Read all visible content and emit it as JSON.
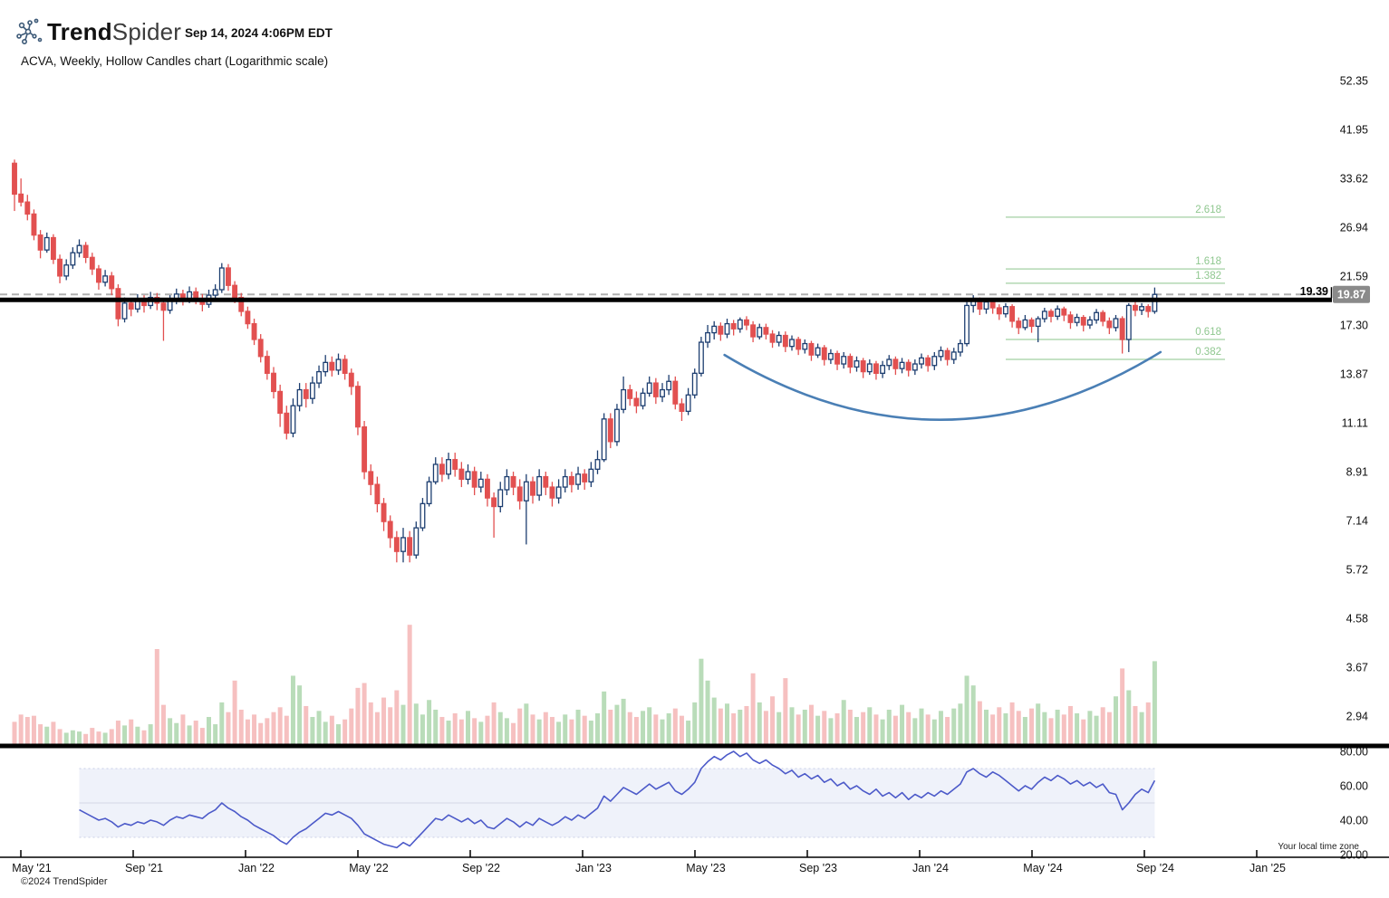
{
  "header": {
    "brand_bold": "Trend",
    "brand_light": "Spider",
    "timestamp": "Sep 14, 2024 4:06PM EDT",
    "subtitle": "ACVA, Weekly, Hollow Candles chart (Logarithmic scale)"
  },
  "footer": {
    "copyright": "©2024 TrendSpider",
    "timezone_note": "Your local time zone"
  },
  "chart_data": {
    "type": "candlestick",
    "symbol": "ACVA",
    "timeframe": "Weekly",
    "style": "Hollow Candles",
    "scale": "Logarithmic",
    "x_axis": {
      "labels": [
        "May '21",
        "Sep '21",
        "Jan '22",
        "May '22",
        "Sep '22",
        "Jan '23",
        "May '23",
        "Sep '23",
        "Jan '24",
        "May '24",
        "Sep '24",
        "Jan '25"
      ]
    },
    "y_axis": {
      "price_labels": [
        "52.35",
        "41.95",
        "33.62",
        "26.94",
        "21.59",
        "17.30",
        "13.87",
        "11.11",
        "8.91",
        "7.14",
        "5.72",
        "4.58",
        "3.67",
        "2.94"
      ],
      "scale": "log"
    },
    "indicator_axis": {
      "labels": [
        "80.00",
        "60.00",
        "40.00",
        "20.00"
      ],
      "band_high": 70,
      "band_low": 30,
      "midline": 50
    },
    "trendline": {
      "label": "19.39",
      "price": 19.39
    },
    "last_price": {
      "label": "19.87",
      "price": 19.87
    },
    "fib_levels": [
      {
        "label": "2.618",
        "price": 28.2
      },
      {
        "label": "1.618",
        "price": 22.3
      },
      {
        "label": "1.382",
        "price": 20.9
      },
      {
        "label": "0.618",
        "price": 16.2
      },
      {
        "label": "0.382",
        "price": 14.8
      }
    ],
    "arc_annotation": {
      "start_week": 109.6,
      "start_price": 15.1,
      "ctrl_week": 143.2,
      "ctrl_price": 8.34,
      "end_week": 176.9,
      "end_price": 15.3
    },
    "ohlc": [
      [
        36.0,
        36.6,
        29.0,
        31.3
      ],
      [
        31.3,
        33.6,
        29.6,
        30.2
      ],
      [
        30.2,
        31.2,
        27.8,
        28.6
      ],
      [
        28.6,
        29.2,
        25.4,
        26.0
      ],
      [
        26.0,
        26.6,
        23.4,
        24.3
      ],
      [
        24.3,
        26.3,
        24.0,
        25.7
      ],
      [
        25.7,
        26.1,
        22.8,
        23.3
      ],
      [
        23.3,
        23.8,
        20.9,
        21.6
      ],
      [
        21.6,
        23.3,
        21.2,
        22.7
      ],
      [
        22.7,
        24.6,
        22.3,
        24.0
      ],
      [
        24.0,
        25.5,
        23.5,
        24.8
      ],
      [
        24.8,
        25.2,
        22.9,
        23.5
      ],
      [
        23.5,
        24.0,
        21.7,
        22.3
      ],
      [
        22.3,
        22.7,
        20.3,
        21.0
      ],
      [
        21.0,
        22.2,
        20.6,
        21.6
      ],
      [
        21.6,
        22.0,
        19.8,
        20.4
      ],
      [
        20.4,
        20.8,
        17.2,
        17.8
      ],
      [
        17.8,
        19.6,
        17.5,
        19.1
      ],
      [
        19.1,
        19.5,
        18.0,
        18.6
      ],
      [
        18.6,
        19.9,
        18.3,
        19.4
      ],
      [
        19.4,
        19.8,
        18.3,
        18.9
      ],
      [
        18.9,
        20.1,
        18.6,
        19.6
      ],
      [
        19.6,
        20.0,
        18.5,
        19.1
      ],
      [
        19.1,
        19.5,
        16.1,
        18.5
      ],
      [
        18.5,
        19.8,
        18.2,
        19.3
      ],
      [
        19.3,
        20.4,
        19.0,
        19.9
      ],
      [
        19.9,
        20.3,
        18.9,
        19.4
      ],
      [
        19.4,
        20.6,
        19.1,
        20.1
      ],
      [
        20.1,
        20.5,
        19.0,
        19.5
      ],
      [
        19.5,
        19.9,
        18.4,
        19.0
      ],
      [
        19.0,
        20.3,
        18.7,
        19.8
      ],
      [
        19.8,
        20.8,
        19.4,
        20.3
      ],
      [
        20.3,
        22.9,
        20.0,
        22.4
      ],
      [
        22.4,
        22.8,
        20.2,
        20.7
      ],
      [
        20.7,
        21.1,
        19.1,
        19.6
      ],
      [
        19.6,
        20.0,
        18.0,
        18.4
      ],
      [
        18.4,
        18.8,
        17.0,
        17.4
      ],
      [
        17.4,
        17.8,
        15.8,
        16.2
      ],
      [
        16.2,
        16.6,
        14.6,
        15.0
      ],
      [
        15.0,
        15.4,
        13.5,
        13.9
      ],
      [
        13.9,
        14.3,
        12.4,
        12.8
      ],
      [
        12.8,
        13.2,
        10.9,
        11.6
      ],
      [
        11.6,
        12.0,
        10.3,
        10.6
      ],
      [
        10.6,
        12.4,
        10.4,
        12.0
      ],
      [
        12.0,
        13.3,
        11.7,
        12.9
      ],
      [
        12.9,
        13.3,
        11.9,
        12.4
      ],
      [
        12.4,
        13.7,
        12.1,
        13.3
      ],
      [
        13.3,
        14.4,
        13.0,
        14.0
      ],
      [
        14.0,
        15.1,
        13.7,
        14.6
      ],
      [
        14.6,
        15.0,
        13.7,
        14.1
      ],
      [
        14.1,
        15.2,
        13.8,
        14.8
      ],
      [
        14.8,
        15.1,
        13.5,
        13.9
      ],
      [
        13.9,
        14.2,
        12.6,
        13.1
      ],
      [
        13.1,
        13.4,
        10.5,
        10.9
      ],
      [
        10.9,
        11.2,
        8.6,
        8.9
      ],
      [
        8.9,
        9.2,
        8.0,
        8.4
      ],
      [
        8.4,
        8.7,
        7.4,
        7.7
      ],
      [
        7.7,
        7.9,
        6.8,
        7.1
      ],
      [
        7.1,
        7.3,
        6.3,
        6.6
      ],
      [
        6.6,
        6.8,
        5.9,
        6.2
      ],
      [
        6.2,
        6.9,
        5.9,
        6.6
      ],
      [
        6.6,
        6.8,
        5.9,
        6.1
      ],
      [
        6.1,
        7.1,
        6.0,
        6.9
      ],
      [
        6.9,
        7.9,
        6.8,
        7.7
      ],
      [
        7.7,
        8.7,
        7.6,
        8.5
      ],
      [
        8.5,
        9.5,
        8.4,
        9.2
      ],
      [
        9.2,
        9.5,
        8.5,
        8.8
      ],
      [
        8.8,
        9.7,
        8.6,
        9.4
      ],
      [
        9.4,
        9.7,
        8.7,
        9.0
      ],
      [
        9.0,
        9.3,
        8.3,
        8.6
      ],
      [
        8.6,
        9.2,
        8.4,
        8.9
      ],
      [
        8.9,
        9.1,
        8.0,
        8.3
      ],
      [
        8.3,
        8.9,
        8.1,
        8.6
      ],
      [
        8.6,
        8.8,
        7.6,
        7.9
      ],
      [
        7.9,
        8.1,
        6.6,
        7.6
      ],
      [
        7.6,
        8.5,
        7.4,
        8.2
      ],
      [
        8.2,
        9.0,
        8.0,
        8.7
      ],
      [
        8.7,
        8.9,
        8.0,
        8.3
      ],
      [
        8.3,
        8.6,
        7.5,
        7.8
      ],
      [
        7.8,
        8.8,
        6.4,
        8.5
      ],
      [
        8.5,
        8.7,
        7.7,
        8.0
      ],
      [
        8.0,
        9.0,
        7.8,
        8.7
      ],
      [
        8.7,
        8.9,
        8.0,
        8.3
      ],
      [
        8.3,
        8.5,
        7.6,
        7.9
      ],
      [
        7.9,
        8.6,
        7.7,
        8.3
      ],
      [
        8.3,
        9.0,
        8.1,
        8.7
      ],
      [
        8.7,
        8.9,
        8.1,
        8.4
      ],
      [
        8.4,
        9.1,
        8.2,
        8.8
      ],
      [
        8.8,
        9.0,
        8.2,
        8.5
      ],
      [
        8.5,
        9.3,
        8.3,
        9.0
      ],
      [
        9.0,
        9.8,
        8.8,
        9.4
      ],
      [
        9.4,
        11.6,
        9.3,
        11.3
      ],
      [
        11.3,
        11.6,
        9.9,
        10.2
      ],
      [
        10.2,
        12.1,
        10.0,
        11.8
      ],
      [
        11.8,
        13.7,
        11.6,
        12.9
      ],
      [
        12.9,
        13.2,
        12.0,
        12.4
      ],
      [
        12.4,
        12.8,
        11.6,
        12.0
      ],
      [
        12.0,
        13.0,
        11.8,
        12.7
      ],
      [
        12.7,
        13.7,
        12.5,
        13.3
      ],
      [
        13.3,
        13.6,
        12.1,
        12.5
      ],
      [
        12.5,
        13.3,
        12.2,
        12.9
      ],
      [
        12.9,
        13.8,
        12.6,
        13.4
      ],
      [
        13.4,
        13.7,
        11.8,
        12.1
      ],
      [
        12.1,
        12.4,
        11.2,
        11.7
      ],
      [
        11.7,
        13.0,
        11.5,
        12.6
      ],
      [
        12.6,
        14.2,
        12.4,
        13.9
      ],
      [
        13.9,
        16.4,
        13.7,
        16.0
      ],
      [
        16.0,
        17.3,
        15.6,
        16.7
      ],
      [
        16.7,
        17.6,
        16.2,
        17.2
      ],
      [
        17.2,
        17.5,
        16.1,
        16.6
      ],
      [
        16.6,
        17.8,
        16.3,
        17.4
      ],
      [
        17.4,
        17.7,
        16.5,
        17.0
      ],
      [
        17.0,
        17.9,
        16.7,
        17.7
      ],
      [
        17.7,
        18.0,
        16.9,
        17.3
      ],
      [
        17.3,
        17.6,
        16.0,
        16.4
      ],
      [
        16.4,
        17.4,
        16.2,
        17.1
      ],
      [
        17.1,
        17.4,
        16.2,
        16.6
      ],
      [
        16.6,
        16.9,
        15.6,
        16.0
      ],
      [
        16.0,
        16.8,
        15.7,
        16.5
      ],
      [
        16.5,
        16.8,
        15.3,
        15.7
      ],
      [
        15.7,
        16.5,
        15.4,
        16.2
      ],
      [
        16.2,
        16.4,
        15.1,
        15.5
      ],
      [
        15.5,
        16.2,
        15.2,
        15.9
      ],
      [
        15.9,
        16.1,
        14.7,
        15.1
      ],
      [
        15.1,
        15.9,
        14.9,
        15.6
      ],
      [
        15.6,
        15.8,
        14.4,
        14.8
      ],
      [
        14.8,
        15.5,
        14.5,
        15.2
      ],
      [
        15.2,
        15.4,
        14.1,
        14.5
      ],
      [
        14.5,
        15.3,
        14.2,
        15.0
      ],
      [
        15.0,
        15.2,
        13.9,
        14.3
      ],
      [
        14.3,
        15.0,
        14.0,
        14.7
      ],
      [
        14.7,
        14.9,
        13.6,
        14.0
      ],
      [
        14.0,
        14.8,
        13.8,
        14.5
      ],
      [
        14.5,
        14.7,
        13.5,
        13.9
      ],
      [
        13.9,
        14.7,
        13.6,
        14.4
      ],
      [
        14.4,
        15.1,
        14.1,
        14.8
      ],
      [
        14.8,
        15.0,
        13.8,
        14.2
      ],
      [
        14.2,
        14.9,
        13.9,
        14.6
      ],
      [
        14.6,
        14.8,
        13.7,
        14.1
      ],
      [
        14.1,
        14.8,
        13.8,
        14.5
      ],
      [
        14.5,
        15.2,
        14.2,
        14.9
      ],
      [
        14.9,
        15.1,
        14.0,
        14.4
      ],
      [
        14.4,
        15.3,
        14.1,
        15.0
      ],
      [
        15.0,
        15.7,
        14.7,
        15.4
      ],
      [
        15.4,
        15.6,
        14.4,
        14.8
      ],
      [
        14.8,
        15.6,
        14.5,
        15.3
      ],
      [
        15.3,
        16.2,
        15.0,
        15.9
      ],
      [
        15.9,
        19.2,
        15.7,
        18.9
      ],
      [
        18.9,
        19.8,
        18.3,
        19.3
      ],
      [
        19.3,
        19.6,
        18.1,
        18.6
      ],
      [
        18.6,
        19.5,
        18.2,
        19.2
      ],
      [
        19.2,
        19.4,
        18.2,
        18.7
      ],
      [
        18.7,
        19.0,
        17.7,
        18.2
      ],
      [
        18.2,
        19.1,
        17.9,
        18.8
      ],
      [
        18.8,
        19.0,
        17.1,
        17.6
      ],
      [
        17.6,
        17.9,
        16.6,
        17.1
      ],
      [
        17.1,
        18.1,
        16.9,
        17.7
      ],
      [
        17.7,
        17.9,
        16.7,
        17.2
      ],
      [
        17.2,
        18.0,
        16.0,
        17.8
      ],
      [
        17.8,
        18.7,
        17.5,
        18.4
      ],
      [
        18.4,
        18.6,
        17.5,
        18.0
      ],
      [
        18.0,
        18.9,
        17.7,
        18.6
      ],
      [
        18.6,
        18.8,
        17.6,
        18.1
      ],
      [
        18.1,
        18.4,
        17.0,
        17.5
      ],
      [
        17.5,
        18.2,
        17.2,
        17.9
      ],
      [
        17.9,
        18.1,
        16.8,
        17.3
      ],
      [
        17.3,
        18.0,
        17.0,
        17.7
      ],
      [
        17.7,
        18.6,
        17.4,
        18.3
      ],
      [
        18.3,
        18.5,
        17.2,
        17.6
      ],
      [
        17.6,
        17.9,
        16.6,
        17.1
      ],
      [
        17.1,
        18.1,
        16.8,
        17.8
      ],
      [
        17.8,
        18.0,
        15.2,
        16.2
      ],
      [
        16.2,
        19.1,
        15.3,
        18.9
      ],
      [
        18.9,
        19.2,
        18.0,
        18.5
      ],
      [
        18.5,
        19.1,
        18.1,
        18.8
      ],
      [
        18.8,
        19.0,
        17.9,
        18.4
      ],
      [
        18.4,
        20.5,
        18.2,
        19.87
      ]
    ],
    "volume": [
      1.8,
      2.4,
      2.2,
      2.3,
      1.6,
      1.4,
      1.8,
      1.2,
      0.9,
      1.1,
      1.0,
      0.8,
      1.3,
      1.0,
      0.9,
      1.2,
      1.9,
      1.5,
      2.0,
      1.4,
      1.1,
      1.6,
      7.8,
      3.2,
      2.1,
      1.7,
      2.4,
      1.5,
      1.9,
      1.3,
      2.2,
      1.6,
      3.4,
      2.6,
      5.2,
      2.8,
      2.0,
      2.4,
      1.7,
      2.1,
      2.6,
      3.0,
      2.3,
      5.6,
      4.8,
      3.1,
      2.2,
      2.7,
      1.8,
      2.3,
      1.6,
      2.0,
      2.9,
      4.6,
      5.0,
      3.4,
      2.6,
      3.8,
      3.0,
      4.4,
      3.2,
      9.8,
      3.3,
      2.4,
      3.6,
      2.8,
      2.2,
      1.9,
      2.5,
      2.0,
      2.7,
      2.1,
      1.8,
      2.3,
      3.4,
      2.6,
      2.1,
      1.7,
      2.9,
      3.3,
      2.4,
      2.0,
      2.6,
      2.2,
      1.8,
      2.4,
      2.0,
      2.8,
      2.3,
      1.9,
      2.5,
      4.3,
      2.8,
      3.2,
      3.7,
      2.6,
      2.2,
      2.7,
      3.0,
      2.4,
      2.0,
      2.5,
      2.9,
      2.3,
      1.9,
      3.4,
      7.0,
      5.2,
      3.8,
      2.9,
      3.3,
      2.5,
      2.8,
      3.1,
      5.8,
      3.4,
      2.7,
      3.9,
      2.6,
      5.4,
      3.0,
      2.4,
      2.8,
      3.2,
      2.3,
      2.7,
      2.1,
      2.5,
      3.6,
      2.8,
      2.2,
      2.6,
      3.0,
      2.4,
      2.0,
      2.8,
      2.3,
      3.2,
      2.6,
      2.1,
      2.9,
      2.4,
      2.0,
      2.7,
      2.2,
      2.9,
      3.3,
      5.6,
      4.8,
      3.5,
      2.8,
      2.4,
      3.0,
      2.5,
      3.4,
      2.7,
      2.2,
      2.9,
      3.3,
      2.6,
      2.1,
      2.8,
      2.4,
      3.1,
      2.5,
      2.0,
      2.7,
      2.3,
      3.0,
      2.6,
      3.9,
      6.2,
      4.4,
      3.1,
      2.6,
      3.4,
      6.8
    ],
    "rsi_start_index": 10,
    "rsi": [
      46,
      44,
      42,
      40,
      41,
      39,
      36,
      38,
      37,
      39,
      38,
      40,
      39,
      37,
      40,
      42,
      41,
      43,
      42,
      41,
      44,
      46,
      50,
      47,
      45,
      42,
      40,
      37,
      35,
      33,
      31,
      28,
      26,
      30,
      33,
      35,
      38,
      41,
      44,
      43,
      45,
      43,
      41,
      37,
      32,
      30,
      28,
      26,
      25,
      24,
      27,
      25,
      29,
      33,
      37,
      41,
      40,
      43,
      41,
      39,
      41,
      38,
      40,
      36,
      35,
      38,
      41,
      39,
      36,
      39,
      37,
      41,
      39,
      37,
      39,
      42,
      40,
      43,
      41,
      44,
      47,
      54,
      51,
      55,
      59,
      57,
      55,
      58,
      61,
      58,
      60,
      62,
      57,
      55,
      58,
      62,
      70,
      74,
      77,
      75,
      78,
      80,
      77,
      79,
      75,
      73,
      75,
      72,
      70,
      67,
      69,
      65,
      67,
      64,
      66,
      62,
      64,
      60,
      62,
      58,
      60,
      57,
      55,
      58,
      54,
      56,
      53,
      56,
      52,
      55,
      53,
      56,
      54,
      57,
      55,
      58,
      61,
      68,
      70,
      67,
      65,
      68,
      66,
      63,
      60,
      57,
      60,
      58,
      62,
      65,
      63,
      66,
      64,
      61,
      63,
      60,
      62,
      59,
      61,
      56,
      55,
      46,
      50,
      55,
      58,
      56,
      63
    ],
    "colors": {
      "candle_up": "#1d3e70",
      "candle_down": "#e25050",
      "volume_up": "#b9dcb9",
      "volume_down": "#f6c0c0",
      "fib_line": "#b2d8b2",
      "fib_text": "#8fc78f",
      "trendline": "#000000",
      "dashed_line": "#b0b0b0",
      "badge_bg": "#8a8a8a",
      "badge_text": "#ffffff",
      "rsi_line": "#4c5ac9",
      "rsi_band": "#eff2fa",
      "rsi_band_edge": "#c8cfe6",
      "rsi_midline": "#d9dde9",
      "arc": "#4a7fb5",
      "axis_text": "#111111"
    }
  }
}
